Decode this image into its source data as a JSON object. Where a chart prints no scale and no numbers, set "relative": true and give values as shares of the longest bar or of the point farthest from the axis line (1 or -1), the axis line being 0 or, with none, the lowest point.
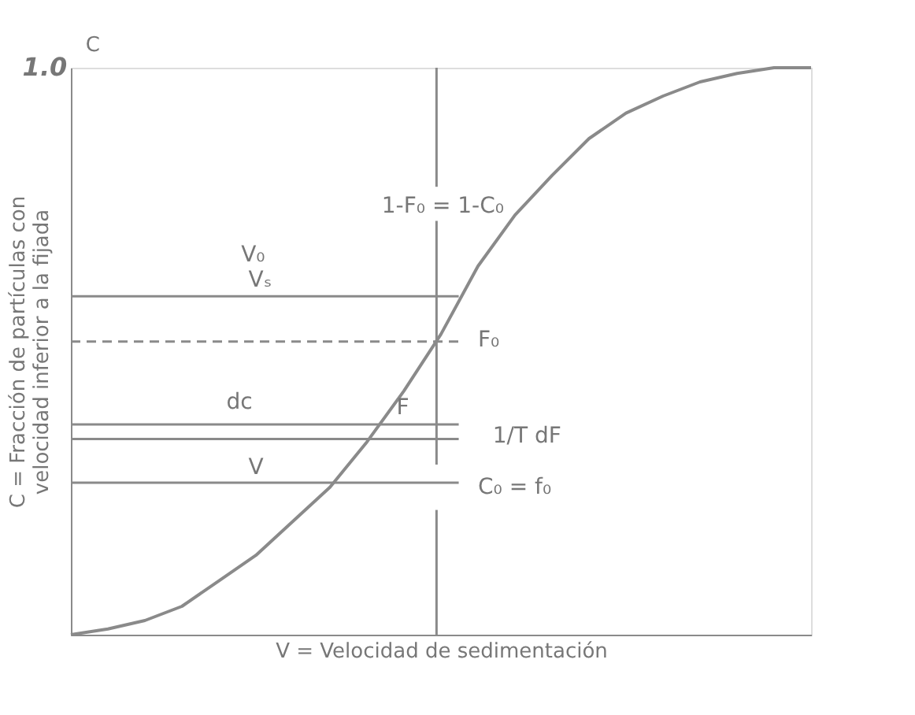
{
  "chart_data": {
    "type": "line",
    "relative": true,
    "xlabel": "V = Velocidad de sedimentación",
    "ylabel": "C = Fracción de partículas con velocidad inferior a la fijada",
    "categories": [
      null,
      null,
      null,
      null,
      null,
      null,
      null,
      null,
      null,
      null,
      null,
      null,
      null,
      null,
      null,
      null,
      null,
      null,
      null,
      null,
      null
    ],
    "tick_labels": false,
    "grid": false,
    "marker": "none",
    "line_style": "solid",
    "series": [
      {
        "color": "#8a8a8a",
        "values": [
          0,
          0.01,
          0.025,
          0.05,
          0.095,
          0.14,
          0.2,
          0.26,
          0.34,
          0.43,
          0.53,
          0.65,
          0.74,
          0.81,
          0.875,
          0.92,
          0.95,
          0.975,
          0.99,
          1.0,
          1.0
        ]
      }
    ],
    "ref_lines": [
      {
        "axis": "y",
        "value": 0.597,
        "color": "#8a8a8a",
        "line_style": "solid"
      },
      {
        "axis": "y",
        "value": 0.517,
        "color": "#8a8a8a",
        "line_style": "dashed"
      },
      {
        "axis": "y",
        "value": 0.371,
        "color": "#8a8a8a",
        "line_style": "solid"
      },
      {
        "axis": "y",
        "value": 0.345,
        "color": "#8a8a8a",
        "line_style": "solid"
      },
      {
        "axis": "y",
        "value": 0.268,
        "color": "#8a8a8a",
        "line_style": "solid"
      }
    ],
    "annotations": [
      "1.0",
      "C",
      "V₀",
      "Vₛ",
      "1-F₀ = 1-C₀",
      "F₀",
      "dc",
      "F",
      "1/T dF",
      "V",
      "C₀ = f₀"
    ]
  }
}
